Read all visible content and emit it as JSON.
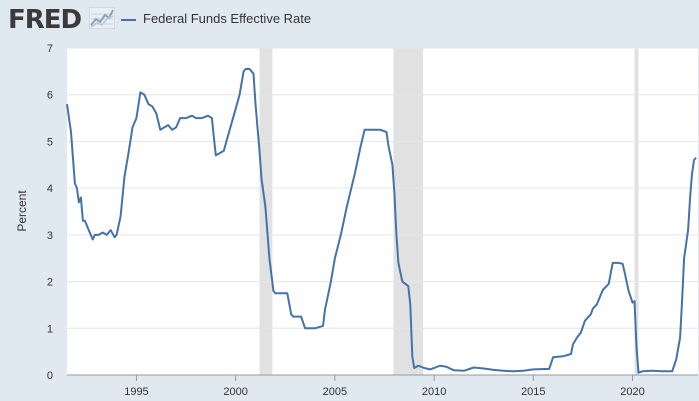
{
  "header": {
    "logo_text": "FRED",
    "logo_icon": "line-graph-icon"
  },
  "colors": {
    "background": "#e1e9f0",
    "plot_background": "#ffffff",
    "series": "#4572a7",
    "recession": "#e1e1e1",
    "grid": "#e6e6e6"
  },
  "chart_data": {
    "type": "line",
    "title": "",
    "xlabel": "",
    "ylabel": "Percent",
    "xlim": [
      1991.5,
      2023.3
    ],
    "ylim": [
      0,
      7
    ],
    "x_ticks": [
      1995,
      2000,
      2005,
      2010,
      2015,
      2020
    ],
    "x_tick_labels": [
      "1995",
      "2000",
      "2005",
      "2010",
      "2015",
      "2020"
    ],
    "y_ticks": [
      0,
      1,
      2,
      3,
      4,
      5,
      6,
      7
    ],
    "y_tick_labels": [
      "0",
      "1",
      "2",
      "3",
      "4",
      "5",
      "6",
      "7"
    ],
    "recessions": [
      {
        "start": 2001.2,
        "end": 2001.85
      },
      {
        "start": 2007.95,
        "end": 2009.45
      },
      {
        "start": 2020.1,
        "end": 2020.3
      }
    ],
    "series": [
      {
        "name": "Federal Funds Effective Rate",
        "x": [
          1991.5,
          1991.7,
          1991.9,
          1992.0,
          1992.1,
          1992.2,
          1992.3,
          1992.4,
          1992.5,
          1992.6,
          1992.8,
          1992.9,
          1993.0,
          1993.1,
          1993.3,
          1993.5,
          1993.7,
          1993.9,
          1994.0,
          1994.2,
          1994.4,
          1994.6,
          1994.8,
          1995.0,
          1995.2,
          1995.4,
          1995.6,
          1995.8,
          1996.0,
          1996.2,
          1996.4,
          1996.6,
          1996.8,
          1997.0,
          1997.2,
          1997.5,
          1997.8,
          1998.0,
          1998.3,
          1998.6,
          1998.8,
          1998.9,
          1999.0,
          1999.2,
          1999.4,
          1999.6,
          1999.8,
          2000.0,
          2000.2,
          2000.4,
          2000.5,
          2000.7,
          2000.9,
          2001.0,
          2001.1,
          2001.2,
          2001.3,
          2001.5,
          2001.7,
          2001.9,
          2002.0,
          2002.3,
          2002.6,
          2002.8,
          2002.9,
          2003.0,
          2003.3,
          2003.5,
          2003.6,
          2004.0,
          2004.4,
          2004.5,
          2004.8,
          2005.0,
          2005.3,
          2005.6,
          2006.0,
          2006.3,
          2006.5,
          2006.8,
          2007.0,
          2007.3,
          2007.6,
          2007.7,
          2007.9,
          2008.0,
          2008.1,
          2008.2,
          2008.4,
          2008.7,
          2008.8,
          2008.9,
          2009.0,
          2009.2,
          2009.5,
          2009.8,
          2010.0,
          2010.3,
          2010.6,
          2011.0,
          2011.5,
          2012.0,
          2012.5,
          2013.0,
          2013.5,
          2014.0,
          2014.5,
          2015.0,
          2015.8,
          2016.0,
          2016.5,
          2016.9,
          2017.0,
          2017.2,
          2017.4,
          2017.6,
          2017.9,
          2018.0,
          2018.2,
          2018.5,
          2018.8,
          2019.0,
          2019.3,
          2019.5,
          2019.6,
          2019.8,
          2020.0,
          2020.1,
          2020.2,
          2020.3,
          2020.5,
          2021.0,
          2021.5,
          2022.0,
          2022.2,
          2022.4,
          2022.5,
          2022.6,
          2022.8,
          2022.9,
          2023.0,
          2023.1,
          2023.2
        ],
        "values": [
          5.8,
          5.2,
          4.1,
          4.0,
          3.7,
          3.8,
          3.3,
          3.3,
          3.2,
          3.1,
          2.9,
          3.0,
          3.0,
          3.0,
          3.05,
          3.0,
          3.1,
          2.95,
          3.0,
          3.4,
          4.25,
          4.75,
          5.3,
          5.5,
          6.05,
          6.0,
          5.8,
          5.75,
          5.6,
          5.25,
          5.3,
          5.35,
          5.25,
          5.3,
          5.5,
          5.5,
          5.55,
          5.5,
          5.5,
          5.55,
          5.5,
          5.1,
          4.7,
          4.75,
          4.8,
          5.1,
          5.4,
          5.7,
          6.0,
          6.5,
          6.55,
          6.55,
          6.45,
          5.8,
          5.3,
          4.8,
          4.2,
          3.6,
          2.5,
          1.8,
          1.75,
          1.75,
          1.75,
          1.3,
          1.25,
          1.25,
          1.25,
          1.0,
          1.0,
          1.0,
          1.05,
          1.4,
          2.0,
          2.5,
          3.0,
          3.6,
          4.3,
          4.9,
          5.25,
          5.25,
          5.25,
          5.25,
          5.2,
          4.9,
          4.5,
          3.9,
          3.0,
          2.4,
          2.0,
          1.9,
          1.5,
          0.4,
          0.15,
          0.2,
          0.15,
          0.12,
          0.15,
          0.2,
          0.18,
          0.1,
          0.09,
          0.16,
          0.14,
          0.11,
          0.09,
          0.08,
          0.09,
          0.12,
          0.13,
          0.38,
          0.4,
          0.45,
          0.66,
          0.8,
          0.91,
          1.16,
          1.3,
          1.42,
          1.51,
          1.82,
          1.95,
          2.4,
          2.4,
          2.38,
          2.2,
          1.8,
          1.55,
          1.58,
          0.6,
          0.05,
          0.08,
          0.09,
          0.08,
          0.08,
          0.33,
          0.8,
          1.6,
          2.5,
          3.1,
          3.8,
          4.3,
          4.6,
          4.65
        ]
      }
    ]
  }
}
